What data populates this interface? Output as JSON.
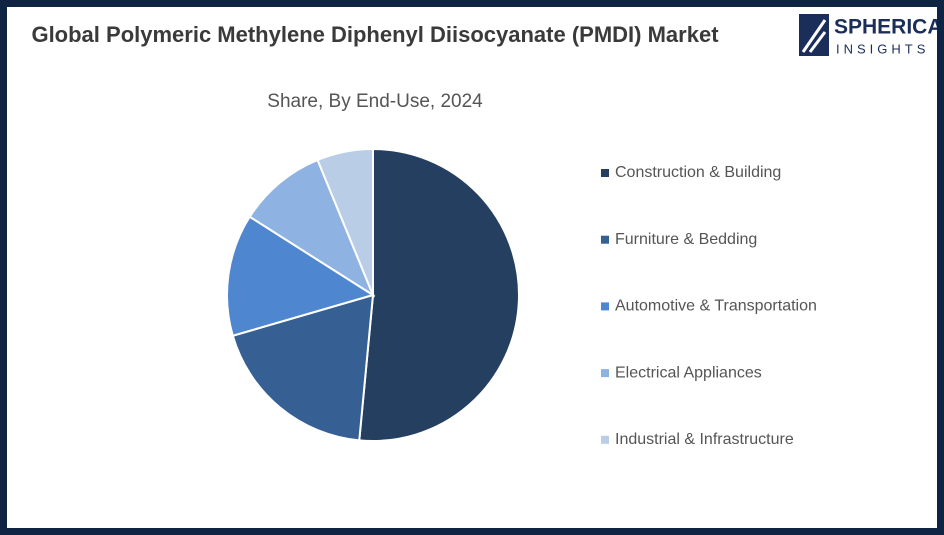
{
  "chart_data": {
    "type": "pie",
    "title": "Global Polymeric Methylene Diphenyl Diisocyanate (PMDI) Market",
    "subtitle": "Share, By End-Use, 2024",
    "categories": [
      "Construction & Building",
      "Furniture & Bedding",
      "Automotive & Transportation",
      "Electrical Appliances",
      "Industrial & Infrastructure"
    ],
    "values": [
      51.5,
      19,
      13.5,
      9.8,
      6.2
    ],
    "colors": [
      "#253f61",
      "#365f93",
      "#4f86d0",
      "#8eb3e3",
      "#b9cde6"
    ],
    "legend": "right"
  },
  "logo": {
    "name": "SPHERICAL",
    "tagline": "INSIGHTS"
  }
}
